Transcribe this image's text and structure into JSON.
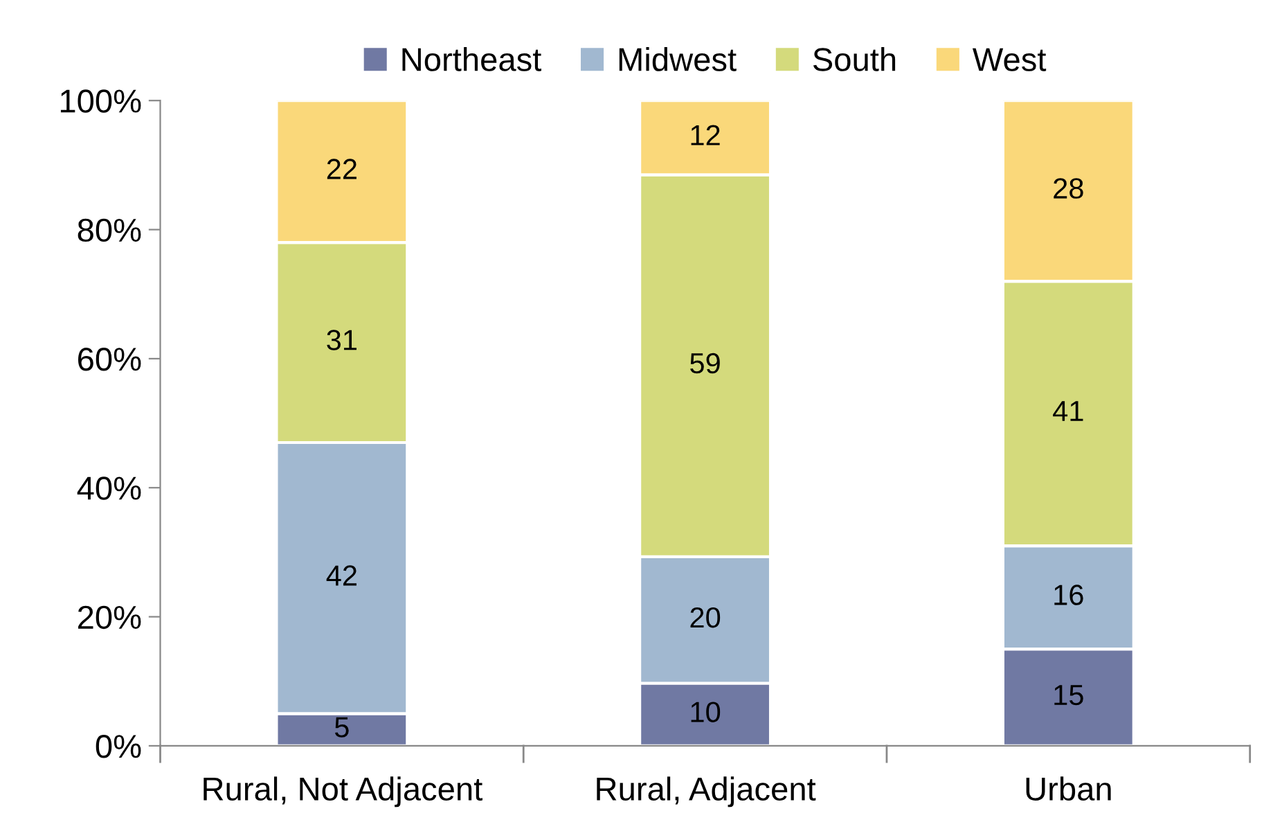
{
  "chart_data": {
    "type": "bar",
    "stacked": true,
    "categories": [
      "Rural, Not Adjacent",
      "Rural, Adjacent",
      "Urban"
    ],
    "series": [
      {
        "name": "Northeast",
        "color": "#7079a3",
        "values": [
          5,
          9.7,
          15
        ],
        "value_labels": [
          "5",
          "10",
          "15"
        ]
      },
      {
        "name": "Midwest",
        "color": "#a1b8d0",
        "values": [
          42,
          19.6,
          16
        ],
        "value_labels": [
          "42",
          "20",
          "16"
        ]
      },
      {
        "name": "South",
        "color": "#d4da7c",
        "values": [
          31,
          59.2,
          41
        ],
        "value_labels": [
          "31",
          "59",
          "41"
        ]
      },
      {
        "name": "West",
        "color": "#fad87a",
        "values": [
          22,
          11.5,
          28
        ],
        "value_labels": [
          "22",
          "12",
          "28"
        ]
      }
    ],
    "ylim": [
      0,
      100
    ],
    "yticks": [
      {
        "value": 0,
        "label": "0%"
      },
      {
        "value": 20,
        "label": "20%"
      },
      {
        "value": 40,
        "label": "40%"
      },
      {
        "value": 60,
        "label": "60%"
      },
      {
        "value": 80,
        "label": "80%"
      },
      {
        "value": 100,
        "label": "100%"
      }
    ],
    "grid": false,
    "legend": "top"
  }
}
